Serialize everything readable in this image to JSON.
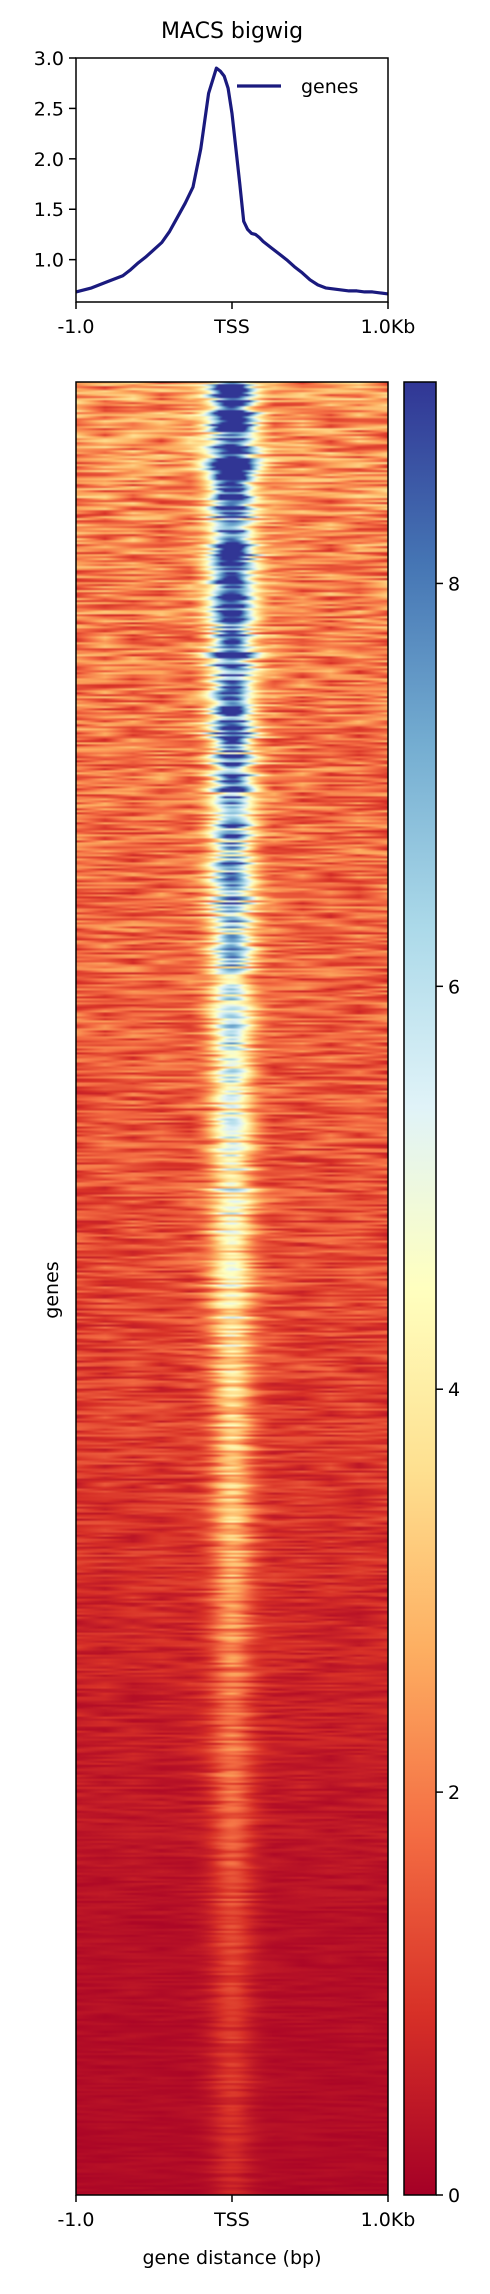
{
  "chart_data": [
    {
      "type": "line",
      "title": "MACS bigwig",
      "xlabel": "",
      "ylabel": "",
      "x_ticks": [
        "-1.0",
        "TSS",
        "1.0Kb"
      ],
      "x_tick_positions": [
        -1000,
        0,
        1000
      ],
      "xlim": [
        -1000,
        1000
      ],
      "ylim": [
        0.58,
        3.0
      ],
      "y_ticks": [
        1.0,
        1.5,
        2.0,
        2.5,
        3.0
      ],
      "y_tick_labels": [
        "1.0",
        "1.5",
        "2.0",
        "2.5",
        "3.0"
      ],
      "grid": false,
      "legend": "top-right",
      "series": [
        {
          "name": "genes",
          "color": "#1a1a7e",
          "x": [
            -1000,
            -900,
            -800,
            -700,
            -650,
            -600,
            -550,
            -500,
            -450,
            -400,
            -350,
            -300,
            -250,
            -200,
            -150,
            -100,
            -75,
            -50,
            -25,
            0,
            25,
            50,
            75,
            100,
            125,
            150,
            175,
            200,
            250,
            300,
            350,
            400,
            450,
            500,
            550,
            600,
            650,
            700,
            750,
            800,
            850,
            900,
            950,
            1000
          ],
          "y": [
            0.68,
            0.72,
            0.78,
            0.84,
            0.9,
            0.97,
            1.03,
            1.1,
            1.17,
            1.28,
            1.42,
            1.56,
            1.72,
            2.1,
            2.65,
            2.9,
            2.87,
            2.82,
            2.7,
            2.45,
            2.1,
            1.75,
            1.38,
            1.3,
            1.26,
            1.25,
            1.22,
            1.18,
            1.12,
            1.06,
            1.0,
            0.93,
            0.87,
            0.8,
            0.75,
            0.72,
            0.71,
            0.7,
            0.69,
            0.69,
            0.68,
            0.68,
            0.67,
            0.66
          ]
        }
      ]
    },
    {
      "type": "heatmap",
      "ylabel": "genes",
      "xlabel": "gene distance (bp)",
      "x_ticks": [
        "-1.0",
        "TSS",
        "1.0Kb"
      ],
      "x_tick_positions": [
        -1000,
        0,
        1000
      ],
      "xlim": [
        -1000,
        1000
      ],
      "colormap": "RdYlBu",
      "color_min": 0,
      "color_max": 9,
      "colorbar_ticks": [
        0,
        2,
        4,
        6,
        8
      ],
      "colorbar_tick_labels": [
        "0",
        "2",
        "4",
        "6",
        "8"
      ],
      "colorbar_colors": [
        "#a50026",
        "#d73027",
        "#f46d43",
        "#fdae61",
        "#fee090",
        "#ffffbf",
        "#e0f3f8",
        "#abd9e9",
        "#74add1",
        "#4575b4",
        "#313695"
      ],
      "row_profile": {
        "fraction": [
          0.0,
          0.05,
          0.1,
          0.2,
          0.3,
          0.4,
          0.5,
          0.6,
          0.7,
          0.85,
          1.0
        ],
        "peak_value": [
          8.8,
          8.5,
          7.6,
          6.5,
          4.8,
          3.6,
          2.8,
          2.2,
          1.5,
          0.9,
          0.5
        ],
        "background": [
          2.4,
          2.3,
          2.1,
          1.9,
          1.7,
          1.5,
          1.3,
          1.0,
          0.7,
          0.3,
          0.2
        ]
      }
    }
  ]
}
